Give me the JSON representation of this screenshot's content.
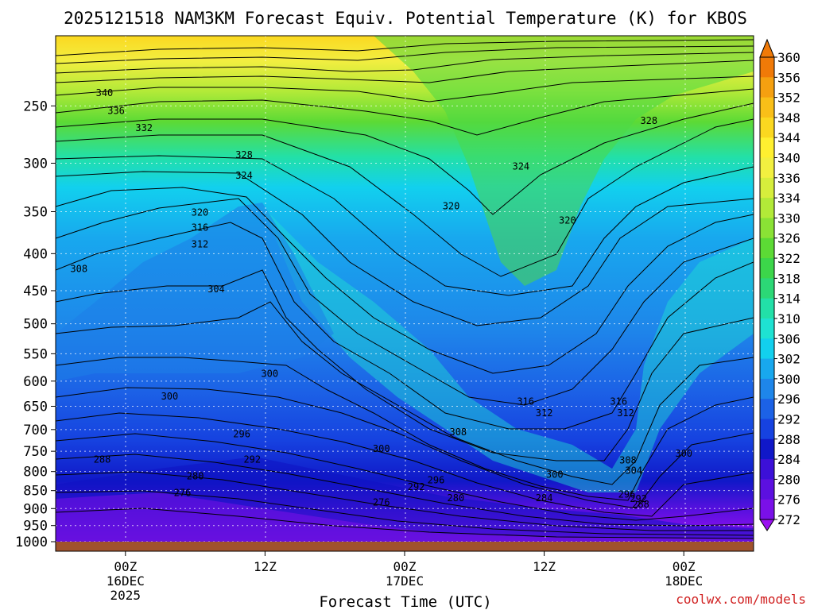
{
  "chart_data": {
    "type": "heatmap",
    "title": "2025121518 NAM3KM Forecast Equiv. Potential Temperature (K) for KBOS",
    "xlabel": "Forecast Time (UTC)",
    "ylabel": "",
    "credit": "coolwx.com/models",
    "x_ticks": [
      {
        "label": "00Z",
        "sub1": "16DEC",
        "sub2": "2025",
        "hour": 6
      },
      {
        "label": "12Z",
        "sub1": "",
        "sub2": "",
        "hour": 18
      },
      {
        "label": "00Z",
        "sub1": "17DEC",
        "sub2": "",
        "hour": 30
      },
      {
        "label": "12Z",
        "sub1": "",
        "sub2": "",
        "hour": 42
      },
      {
        "label": "00Z",
        "sub1": "18DEC",
        "sub2": "",
        "hour": 54
      }
    ],
    "x_range_hours": [
      0,
      60
    ],
    "y_ticks": [
      "250",
      "300",
      "350",
      "400",
      "450",
      "500",
      "550",
      "600",
      "650",
      "700",
      "750",
      "800",
      "850",
      "900",
      "950",
      "1000"
    ],
    "y_values": [
      250,
      300,
      350,
      400,
      450,
      500,
      550,
      600,
      650,
      700,
      750,
      800,
      850,
      900,
      950,
      1000
    ],
    "y_range_hpa": [
      200,
      1000
    ],
    "colorbar": {
      "levels": [
        "360",
        "356",
        "352",
        "348",
        "344",
        "340",
        "336",
        "334",
        "330",
        "326",
        "322",
        "318",
        "314",
        "310",
        "306",
        "302",
        "300",
        "296",
        "292",
        "288",
        "284",
        "280",
        "276",
        "272"
      ],
      "colors": [
        "#f07a08",
        "#f5a010",
        "#f9bf18",
        "#fbd820",
        "#fff030",
        "#f2f040",
        "#d6ee3c",
        "#b2ea38",
        "#8ae235",
        "#5cda35",
        "#3cd64a",
        "#2cd876",
        "#22e0a8",
        "#1ee2d2",
        "#12d0ee",
        "#18a8ee",
        "#1e86ea",
        "#1c62e6",
        "#1642e0",
        "#1018c8",
        "#3c10d8",
        "#5c10e0",
        "#7a10e8",
        "#9a10f0"
      ]
    },
    "contour_labels": [
      {
        "text": "340",
        "hour": 4.2,
        "p": 240
      },
      {
        "text": "336",
        "hour": 5.2,
        "p": 254
      },
      {
        "text": "332",
        "hour": 7.6,
        "p": 268
      },
      {
        "text": "328",
        "hour": 16.2,
        "p": 292
      },
      {
        "text": "324",
        "hour": 16.2,
        "p": 312
      },
      {
        "text": "320",
        "hour": 12.4,
        "p": 351
      },
      {
        "text": "316",
        "hour": 12.4,
        "p": 368
      },
      {
        "text": "312",
        "hour": 12.4,
        "p": 388
      },
      {
        "text": "308",
        "hour": 2.0,
        "p": 420
      },
      {
        "text": "304",
        "hour": 13.8,
        "p": 448
      },
      {
        "text": "300",
        "hour": 18.4,
        "p": 586
      },
      {
        "text": "300",
        "hour": 9.8,
        "p": 630
      },
      {
        "text": "296",
        "hour": 16.0,
        "p": 710
      },
      {
        "text": "300",
        "hour": 28.0,
        "p": 744
      },
      {
        "text": "292",
        "hour": 16.9,
        "p": 770
      },
      {
        "text": "288",
        "hour": 4.0,
        "p": 770
      },
      {
        "text": "280",
        "hour": 12.0,
        "p": 812
      },
      {
        "text": "276",
        "hour": 10.9,
        "p": 856
      },
      {
        "text": "308",
        "hour": 34.6,
        "p": 706
      },
      {
        "text": "296",
        "hour": 32.7,
        "p": 822
      },
      {
        "text": "292",
        "hour": 31.0,
        "p": 840
      },
      {
        "text": "280",
        "hour": 34.4,
        "p": 870
      },
      {
        "text": "276",
        "hour": 28.0,
        "p": 882
      },
      {
        "text": "284",
        "hour": 42.0,
        "p": 870
      },
      {
        "text": "316",
        "hour": 40.4,
        "p": 640
      },
      {
        "text": "312",
        "hour": 42.0,
        "p": 664
      },
      {
        "text": "300",
        "hour": 42.9,
        "p": 808
      },
      {
        "text": "304",
        "hour": 49.7,
        "p": 798
      },
      {
        "text": "308",
        "hour": 49.2,
        "p": 772
      },
      {
        "text": "316",
        "hour": 48.4,
        "p": 640
      },
      {
        "text": "312",
        "hour": 49.0,
        "p": 664
      },
      {
        "text": "296",
        "hour": 49.1,
        "p": 860
      },
      {
        "text": "292",
        "hour": 50.1,
        "p": 872
      },
      {
        "text": "288",
        "hour": 50.3,
        "p": 888
      },
      {
        "text": "300",
        "hour": 54.0,
        "p": 755
      },
      {
        "text": "320",
        "hour": 34.0,
        "p": 344
      },
      {
        "text": "324",
        "hour": 40.0,
        "p": 303
      },
      {
        "text": "320",
        "hour": 44.0,
        "p": 360
      },
      {
        "text": "328",
        "hour": 51.0,
        "p": 262
      }
    ]
  }
}
